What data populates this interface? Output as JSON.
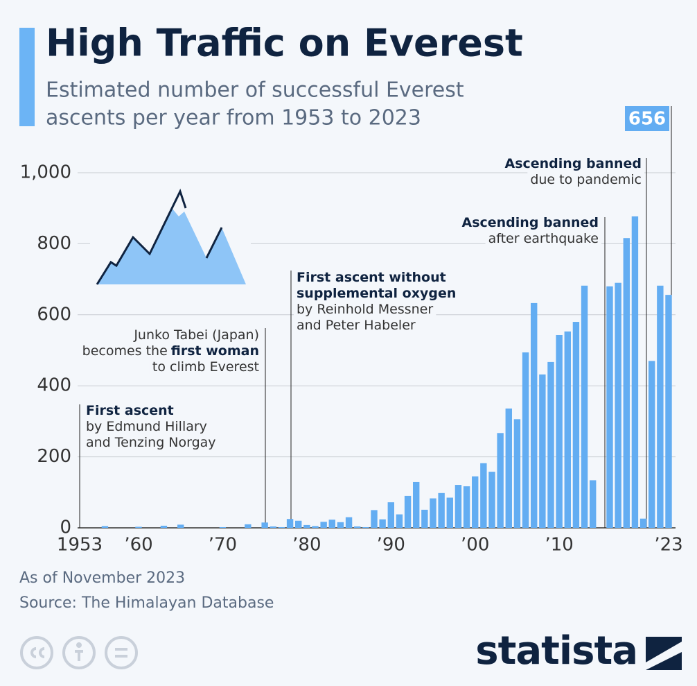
{
  "chart_data": {
    "type": "bar",
    "title": "High Traffic on Everest",
    "subtitle": [
      "Estimated number of successful Everest",
      "ascents per year from 1953 to 2023"
    ],
    "x": [
      1953,
      1954,
      1955,
      1956,
      1957,
      1958,
      1959,
      1960,
      1961,
      1962,
      1963,
      1964,
      1965,
      1966,
      1967,
      1968,
      1969,
      1970,
      1971,
      1972,
      1973,
      1974,
      1975,
      1976,
      1977,
      1978,
      1979,
      1980,
      1981,
      1982,
      1983,
      1984,
      1985,
      1986,
      1987,
      1988,
      1989,
      1990,
      1991,
      1992,
      1993,
      1994,
      1995,
      1996,
      1997,
      1998,
      1999,
      2000,
      2001,
      2002,
      2003,
      2004,
      2005,
      2006,
      2007,
      2008,
      2009,
      2010,
      2011,
      2012,
      2013,
      2014,
      2015,
      2016,
      2017,
      2018,
      2019,
      2020,
      2021,
      2022,
      2023
    ],
    "values": [
      0,
      0,
      0,
      5,
      0,
      0,
      0,
      3,
      0,
      0,
      6,
      0,
      9,
      0,
      0,
      0,
      0,
      2,
      0,
      0,
      10,
      0,
      15,
      4,
      2,
      25,
      20,
      8,
      5,
      17,
      23,
      16,
      30,
      4,
      2,
      50,
      24,
      72,
      38,
      90,
      129,
      51,
      83,
      98,
      85,
      121,
      117,
      145,
      182,
      158,
      267,
      336,
      306,
      494,
      633,
      432,
      467,
      543,
      553,
      580,
      682,
      134,
      0,
      680,
      690,
      816,
      877,
      26,
      470,
      682,
      656
    ],
    "color": "#63adf2",
    "xlim": [
      1953,
      2023
    ],
    "xticks": [
      {
        "value": 1953,
        "label": "1953"
      },
      {
        "value": 1960,
        "label": "’60"
      },
      {
        "value": 1970,
        "label": "’70"
      },
      {
        "value": 1980,
        "label": "’80"
      },
      {
        "value": 1990,
        "label": "’90"
      },
      {
        "value": 2000,
        "label": "’00"
      },
      {
        "value": 2010,
        "label": "’10"
      },
      {
        "value": 2023,
        "label": "’23"
      }
    ],
    "ylim": [
      0,
      1000
    ],
    "yticks": [
      0,
      200,
      400,
      600,
      800,
      {
        "value": 1000,
        "label": "1,000"
      }
    ],
    "grid": true,
    "annotations": [
      [
        [
          {
            "text": "First ascent",
            "bold": true
          }
        ],
        [
          {
            "text": "by Edmund Hillary"
          }
        ],
        [
          {
            "text": "and Tenzing Norgay"
          }
        ]
      ],
      [
        [
          {
            "text": "Junko Tabei (Japan)"
          }
        ],
        [
          {
            "text": "becomes the"
          },
          {
            "text": "first woman",
            "bold": true
          }
        ],
        [
          {
            "text": "to climb Everest"
          }
        ]
      ],
      [
        [
          {
            "text": "First ascent without",
            "bold": true
          }
        ],
        [
          {
            "text": "supplemental oxygen",
            "bold": true
          }
        ],
        [
          {
            "text": "by Reinhold Messner"
          }
        ],
        [
          {
            "text": "and Peter Habeler"
          }
        ]
      ],
      [
        [
          {
            "text": "Ascending banned",
            "bold": true
          }
        ],
        [
          {
            "text": "after earthquake"
          }
        ]
      ],
      [
        [
          {
            "text": "Ascending banned",
            "bold": true
          }
        ],
        [
          {
            "text": "due to pandemic"
          }
        ]
      ]
    ],
    "notes": [
      "As of November 2023",
      "Source: The Himalayan Database"
    ],
    "brand": "statista"
  }
}
